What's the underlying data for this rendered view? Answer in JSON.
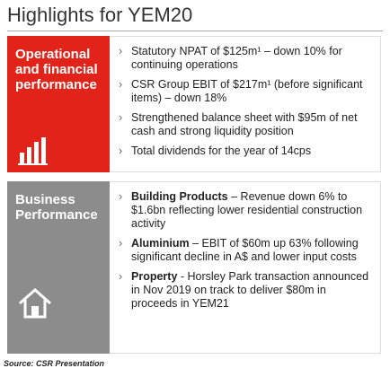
{
  "header": {
    "title": "Highlights for YEM20"
  },
  "sections": [
    {
      "label": "Operational and financial performance",
      "bullets": [
        {
          "text": "Statutory NPAT of $125m¹ – down 10% for continuing operations"
        },
        {
          "text": "CSR Group EBIT of $217m¹ (before significant items) – down 18%"
        },
        {
          "text": "Strengthened balance sheet with $95m of net cash and strong liquidity position"
        },
        {
          "text": "Total dividends for the year of 14cps"
        }
      ]
    },
    {
      "label": "Business Performance",
      "bullets": [
        {
          "bold": "Building Products",
          "text": " – Revenue down 6% to $1.6bn reflecting lower residential construction activity"
        },
        {
          "bold": "Aluminium",
          "text": " – EBIT of $60m up 63% following significant decline in A$ and lower input costs"
        },
        {
          "bold": "Property",
          "text": " - Horsley Park transaction announced in Nov 2019 on track to deliver $80m in proceeds in YEM21"
        }
      ]
    }
  ],
  "source": "Source: CSR Presentation"
}
